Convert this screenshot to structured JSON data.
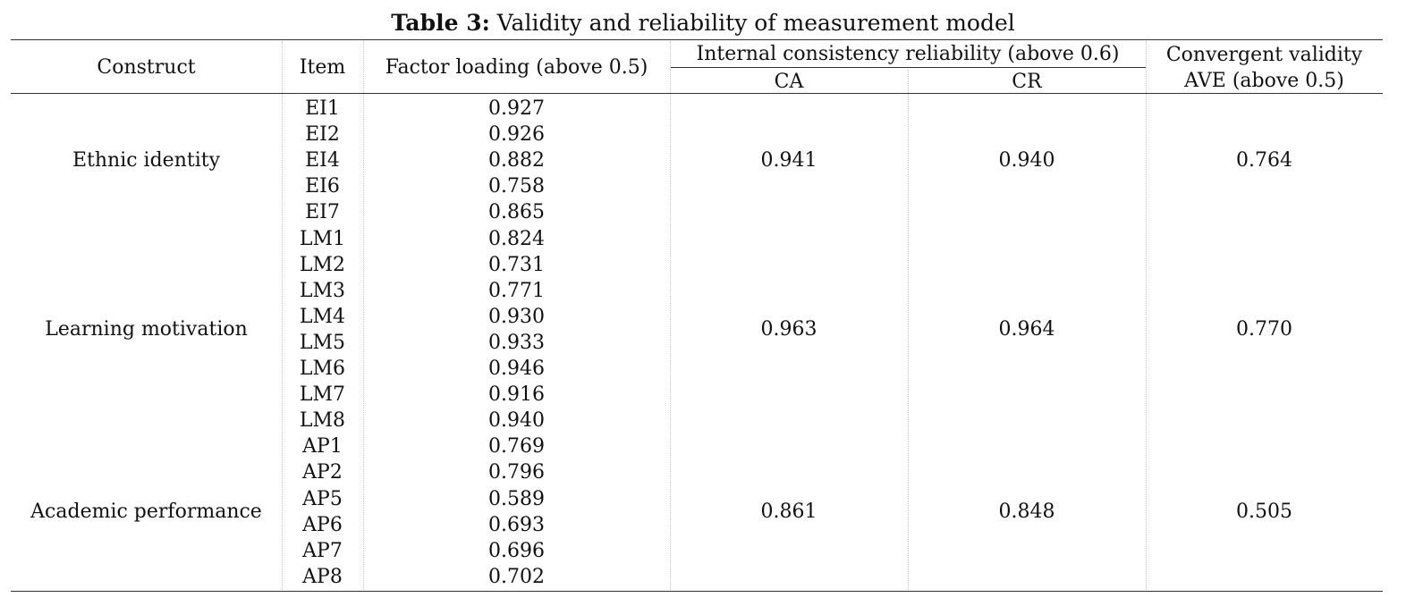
{
  "caption": {
    "label": "Table 3:",
    "text": "Validity and reliability of measurement model"
  },
  "header": {
    "construct": "Construct",
    "item": "Item",
    "factor_loading": "Factor loading (above 0.5)",
    "internal_consistency": "Internal consistency reliability (above 0.6)",
    "ca": "CA",
    "cr": "CR",
    "convergent_validity": "Convergent validity",
    "ave": "AVE (above 0.5)"
  },
  "groups": [
    {
      "construct": "Ethnic identity",
      "ca": "0.941",
      "cr": "0.940",
      "ave": "0.764",
      "rows": [
        {
          "item": "EI1",
          "loading": "0.927"
        },
        {
          "item": "EI2",
          "loading": "0.926"
        },
        {
          "item": "EI4",
          "loading": "0.882"
        },
        {
          "item": "EI6",
          "loading": "0.758"
        },
        {
          "item": "EI7",
          "loading": "0.865"
        }
      ]
    },
    {
      "construct": "Learning motivation",
      "ca": "0.963",
      "cr": "0.964",
      "ave": "0.770",
      "rows": [
        {
          "item": "LM1",
          "loading": "0.824"
        },
        {
          "item": "LM2",
          "loading": "0.731"
        },
        {
          "item": "LM3",
          "loading": "0.771"
        },
        {
          "item": "LM4",
          "loading": "0.930"
        },
        {
          "item": "LM5",
          "loading": "0.933"
        },
        {
          "item": "LM6",
          "loading": "0.946"
        },
        {
          "item": "LM7",
          "loading": "0.916"
        },
        {
          "item": "LM8",
          "loading": "0.940"
        }
      ]
    },
    {
      "construct": "Academic performance",
      "ca": "0.861",
      "cr": "0.848",
      "ave": "0.505",
      "rows": [
        {
          "item": "AP1",
          "loading": "0.769"
        },
        {
          "item": "AP2",
          "loading": "0.796"
        },
        {
          "item": "AP5",
          "loading": "0.589"
        },
        {
          "item": "AP6",
          "loading": "0.693"
        },
        {
          "item": "AP7",
          "loading": "0.696"
        },
        {
          "item": "AP8",
          "loading": "0.702"
        }
      ]
    }
  ]
}
